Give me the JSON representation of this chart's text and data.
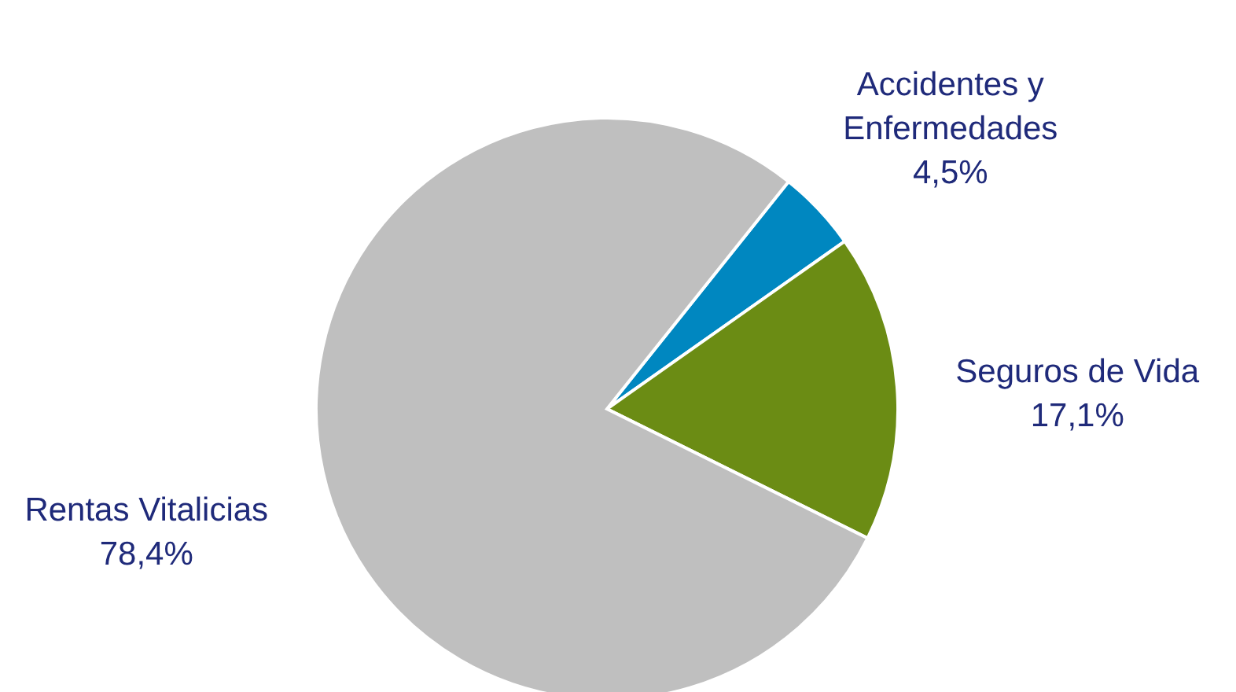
{
  "chart_data": {
    "type": "pie",
    "categories": [
      "Accidentes y\nEnfermedades",
      "Seguros de Vida",
      "Rentas Vitalicias"
    ],
    "values": [
      4.5,
      17.1,
      78.4
    ],
    "value_labels": [
      "4,5%",
      "17,1%",
      "78,4%"
    ],
    "colors": [
      "#0087c0",
      "#6b8c14",
      "#bfbfbf"
    ],
    "legend": false
  }
}
